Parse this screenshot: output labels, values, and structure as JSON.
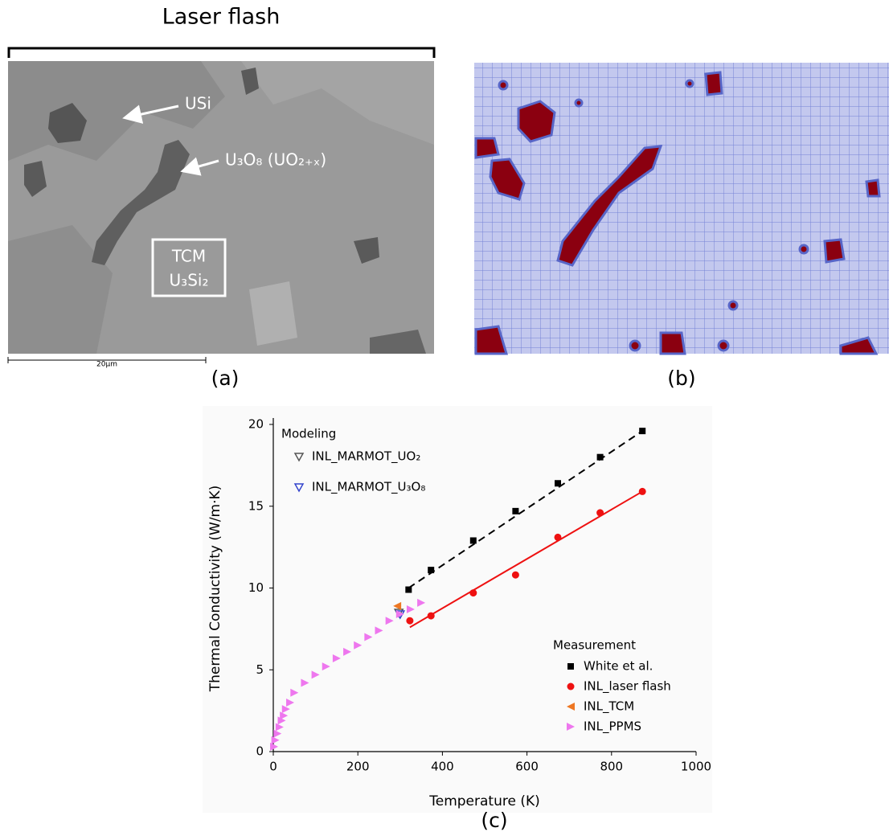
{
  "figure": {
    "panel_a": {
      "bracket_label": "Laser flash",
      "arrow_labels": [
        "USi",
        "U₃O₈ (UO₂₊ₓ)"
      ],
      "box_labels": [
        "TCM",
        "U₃Si₂"
      ],
      "scale_bar": "20µm",
      "caption": "(a)"
    },
    "panel_b": {
      "caption": "(b)"
    }
  },
  "chart_data": {
    "type": "scatter",
    "caption": "(c)",
    "x_label": "Temperature (K)",
    "y_label": "Thermal Conductivity (W/m·K)",
    "xlim": [
      0,
      1000
    ],
    "xticks": [
      0,
      200,
      400,
      600,
      800,
      1000
    ],
    "ylim": [
      0,
      20
    ],
    "yticks": [
      0,
      5,
      10,
      15,
      20
    ],
    "grid": false,
    "legend_groups": [
      {
        "title": "Modeling",
        "series": [
          {
            "name": "INL_MARMOT_UO₂",
            "color": "#555555",
            "marker": "triangle-down-open",
            "x": [
              297
            ],
            "values": [
              8.5
            ]
          },
          {
            "name": "INL_MARMOT_U₃O₈",
            "color": "#3344cc",
            "marker": "triangle-down-open",
            "x": [
              300
            ],
            "values": [
              8.4
            ]
          }
        ]
      },
      {
        "title": "Measurement",
        "series": [
          {
            "name": "White et al.",
            "color": "#000000",
            "marker": "square",
            "x": [
              320,
              373,
              473,
              573,
              673,
              773,
              873
            ],
            "values": [
              9.9,
              11.1,
              12.9,
              14.7,
              16.4,
              18.0,
              19.6
            ]
          },
          {
            "name": "INL_laser flash",
            "color": "#ee1111",
            "marker": "circle",
            "x": [
              323,
              373,
              473,
              573,
              673,
              773,
              873
            ],
            "values": [
              8.0,
              8.3,
              9.7,
              10.8,
              13.1,
              14.6,
              15.9
            ]
          },
          {
            "name": "INL_TCM",
            "color": "#ee7722",
            "marker": "triangle-left",
            "x": [
              293
            ],
            "values": [
              8.9
            ]
          },
          {
            "name": "INL_PPMS",
            "color": "#ee77ee",
            "marker": "triangle-right",
            "x": [
              2,
              5,
              10,
              15,
              20,
              25,
              30,
              40,
              50,
              75,
              100,
              125,
              150,
              175,
              200,
              225,
              250,
              275,
              300,
              325,
              350
            ],
            "values": [
              0.3,
              0.7,
              1.1,
              1.5,
              1.9,
              2.2,
              2.6,
              3.0,
              3.6,
              4.2,
              4.7,
              5.2,
              5.7,
              6.1,
              6.5,
              7.0,
              7.4,
              8.0,
              8.4,
              8.7,
              9.1
            ]
          }
        ]
      }
    ],
    "fit_lines": [
      {
        "color": "#000000",
        "dashed": true,
        "x": [
          320,
          873
        ],
        "values": [
          10.0,
          19.6
        ]
      },
      {
        "color": "#ee1111",
        "dashed": false,
        "x": [
          323,
          873
        ],
        "values": [
          7.6,
          15.9
        ]
      }
    ]
  }
}
